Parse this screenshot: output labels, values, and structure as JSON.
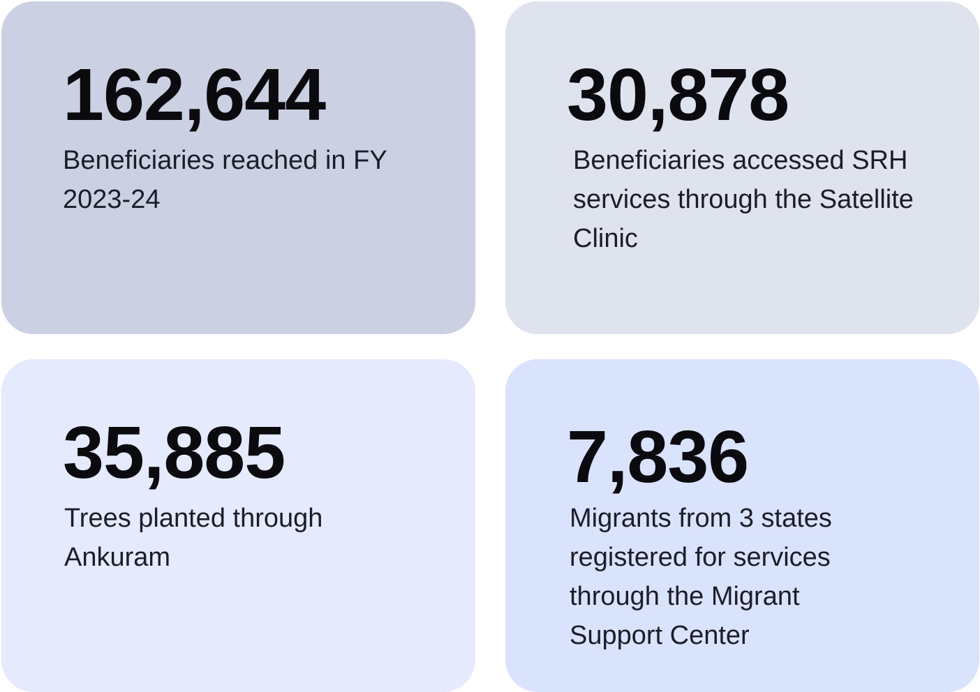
{
  "cards": [
    {
      "value": "162,644",
      "label": "Beneficiaries reached in FY 2023-24"
    },
    {
      "value": "30,878",
      "label": "Beneficiaries accessed SRH services through the Satellite Clinic"
    },
    {
      "value": "35,885",
      "label": "Trees planted through Ankuram"
    },
    {
      "value": "7,836",
      "label": "Migrants from 3 states registered for services through the Migrant Support Center"
    }
  ]
}
